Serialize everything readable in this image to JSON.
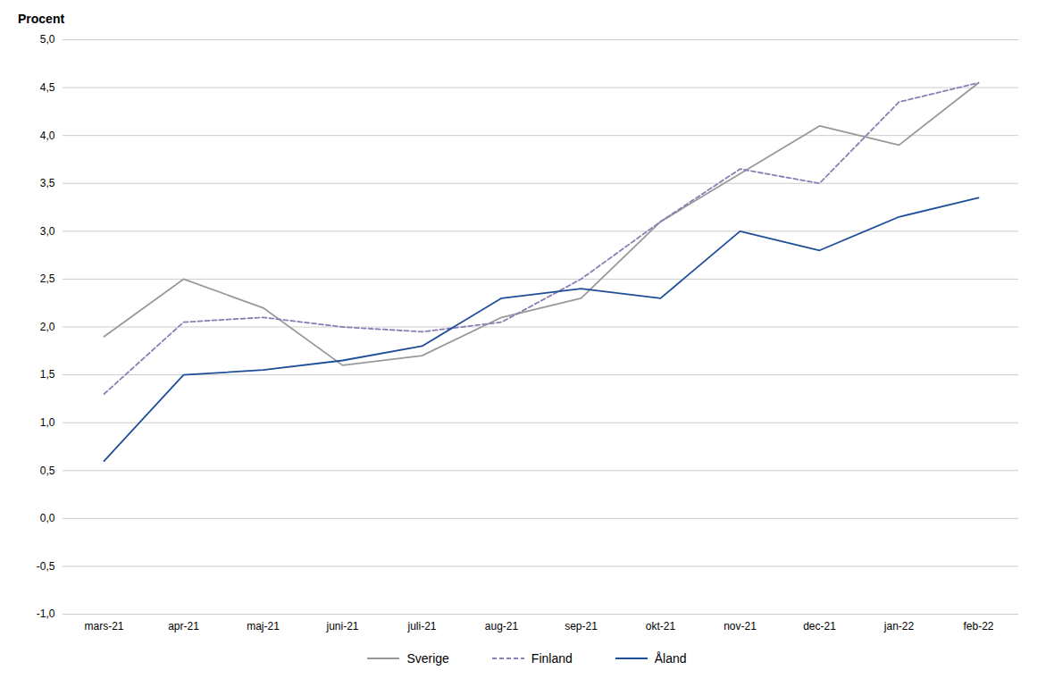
{
  "chart_data": {
    "type": "line",
    "ylabel": "Procent",
    "categories": [
      "mars-21",
      "apr-21",
      "maj-21",
      "juni-21",
      "juli-21",
      "aug-21",
      "sep-21",
      "okt-21",
      "nov-21",
      "dec-21",
      "jan-22",
      "feb-22"
    ],
    "series": [
      {
        "name": "Sverige",
        "color": "#999999",
        "line_style": "solid",
        "values": [
          1.9,
          2.5,
          2.2,
          1.6,
          1.7,
          2.1,
          2.3,
          3.1,
          3.6,
          4.1,
          3.9,
          4.55
        ]
      },
      {
        "name": "Finland",
        "color": "#8b7db5",
        "line_style": "dashed",
        "values": [
          1.3,
          2.05,
          2.1,
          2.0,
          1.95,
          2.05,
          2.5,
          3.1,
          3.65,
          3.5,
          4.35,
          4.55
        ]
      },
      {
        "name": "Åland",
        "color": "#1f4e99",
        "line_style": "solid",
        "values": [
          0.6,
          1.5,
          1.55,
          1.65,
          1.8,
          2.3,
          2.4,
          2.3,
          3.0,
          2.8,
          3.15,
          3.35
        ]
      }
    ],
    "ylim": [
      -1.0,
      5.0
    ],
    "yticks": [
      {
        "value": -1.0,
        "label": "-1,0"
      },
      {
        "value": -0.5,
        "label": "-0,5"
      },
      {
        "value": 0.0,
        "label": "0,0"
      },
      {
        "value": 0.5,
        "label": "0,5"
      },
      {
        "value": 1.0,
        "label": "1,0"
      },
      {
        "value": 1.5,
        "label": "1,5"
      },
      {
        "value": 2.0,
        "label": "2,0"
      },
      {
        "value": 2.5,
        "label": "2,5"
      },
      {
        "value": 3.0,
        "label": "3,0"
      },
      {
        "value": 3.5,
        "label": "3,5"
      },
      {
        "value": 4.0,
        "label": "4,0"
      },
      {
        "value": 4.5,
        "label": "4,5"
      },
      {
        "value": 5.0,
        "label": "5,0"
      }
    ],
    "grid": true,
    "legend": "bottom"
  }
}
